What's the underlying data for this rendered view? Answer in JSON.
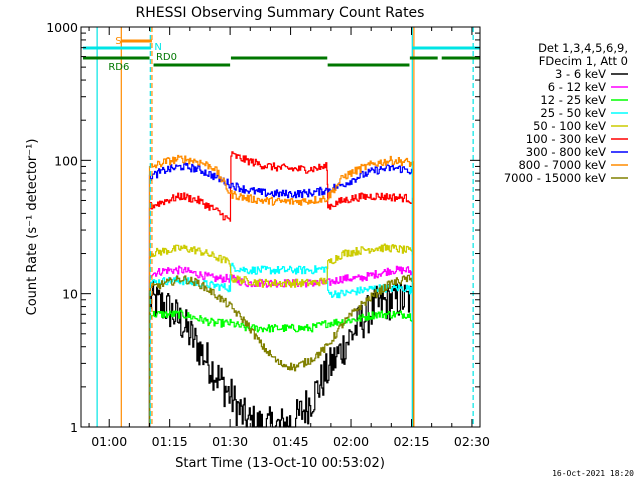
{
  "chart_data": {
    "type": "line",
    "title": "RHESSI Observing Summary Count Rates",
    "xlabel": "Start Time (13-Oct-10 00:53:02)",
    "ylabel": "Count Rate (s⁻¹ detector⁻¹)",
    "yscale": "log",
    "ylim": [
      1,
      1000
    ],
    "xlim_minutes": [
      53.0,
      152.0
    ],
    "x_ticks": [
      {
        "label": "01:00",
        "minute": 60
      },
      {
        "label": "01:15",
        "minute": 75
      },
      {
        "label": "01:30",
        "minute": 90
      },
      {
        "label": "01:45",
        "minute": 105
      },
      {
        "label": "02:00",
        "minute": 120
      },
      {
        "label": "02:15",
        "minute": 135
      },
      {
        "label": "02:30",
        "minute": 150
      }
    ],
    "y_ticks": [
      {
        "label": "1",
        "value": 1
      },
      {
        "label": "10",
        "value": 10
      },
      {
        "label": "100",
        "value": 100
      },
      {
        "label": "1000",
        "value": 1000
      }
    ],
    "legend": {
      "header1": "Det 1,3,4,5,6,9,",
      "header2": "FDecim 1, Att 0",
      "placement": "right, outside plot"
    },
    "series": [
      {
        "name": "3 - 6 keV",
        "color": "#000000",
        "x_minutes": [
          70,
          74,
          78,
          82,
          86,
          90,
          94,
          98,
          102,
          106,
          110,
          114,
          118,
          122,
          126,
          130,
          134,
          135.5
        ],
        "values": [
          9,
          8,
          6,
          4,
          2.6,
          1.7,
          1.1,
          1.0,
          1.0,
          1.1,
          1.6,
          2.6,
          4,
          6,
          8,
          9,
          9,
          9
        ]
      },
      {
        "name": "6 - 12 keV",
        "color": "#ff00ff",
        "x_minutes": [
          70,
          74,
          78,
          82,
          86,
          90,
          94,
          98,
          102,
          106,
          110,
          114,
          118,
          122,
          126,
          130,
          134,
          135.5
        ],
        "values": [
          14,
          15,
          15,
          14,
          13,
          13,
          12,
          12,
          12,
          12,
          12,
          12,
          13,
          13,
          14,
          15,
          15,
          14
        ]
      },
      {
        "name": "12 - 25 keV",
        "color": "#00ff00",
        "x_minutes": [
          70,
          74,
          78,
          82,
          86,
          90,
          94,
          98,
          102,
          106,
          110,
          114,
          118,
          122,
          126,
          130,
          134,
          135.5
        ],
        "values": [
          7,
          7,
          7,
          6.5,
          6,
          6,
          5.5,
          5.5,
          5.5,
          5.5,
          5.5,
          6,
          6.2,
          6.5,
          7,
          7,
          7,
          6.5
        ]
      },
      {
        "name": "25 - 50 keV",
        "color": "#00ffff",
        "x_minutes": [
          70,
          74,
          78,
          82,
          86,
          90,
          90.2,
          94,
          98,
          102,
          106,
          110,
          114,
          114.2,
          118,
          122,
          126,
          130,
          134,
          135.5
        ],
        "values": [
          12,
          12.5,
          12.5,
          12,
          11.5,
          11,
          16,
          15,
          15,
          15,
          15,
          15,
          15.5,
          10,
          10,
          10.5,
          11,
          11,
          11,
          10
        ]
      },
      {
        "name": "50 - 100 keV",
        "color": "#cccc00",
        "x_minutes": [
          70,
          74,
          78,
          82,
          86,
          90,
          90.2,
          94,
          98,
          102,
          106,
          110,
          114,
          114.2,
          118,
          122,
          126,
          130,
          134,
          135.5
        ],
        "values": [
          20,
          21,
          22,
          21,
          19,
          17,
          13,
          12.5,
          12,
          12,
          12,
          12,
          12.5,
          17,
          20,
          21,
          22,
          22,
          21,
          20
        ]
      },
      {
        "name": "100 - 300 keV",
        "color": "#ff0000",
        "x_minutes": [
          70,
          74,
          78,
          82,
          86,
          90,
          90.2,
          94,
          98,
          102,
          106,
          110,
          114,
          114.2,
          118,
          122,
          126,
          130,
          134,
          135.5
        ],
        "values": [
          45,
          50,
          54,
          50,
          43,
          35,
          110,
          100,
          92,
          88,
          86,
          86,
          90,
          45,
          50,
          53,
          54,
          53,
          52,
          48
        ]
      },
      {
        "name": "300 - 800 keV",
        "color": "#0000ff",
        "x_minutes": [
          70,
          74,
          78,
          82,
          86,
          90,
          94,
          98,
          102,
          106,
          110,
          114,
          118,
          122,
          126,
          130,
          134,
          135.5
        ],
        "values": [
          75,
          85,
          90,
          86,
          76,
          66,
          60,
          57,
          56,
          56,
          57,
          60,
          66,
          76,
          84,
          88,
          85,
          80
        ]
      },
      {
        "name": "800 - 7000 keV",
        "color": "#ff8c00",
        "x_minutes": [
          70,
          74,
          78,
          82,
          86,
          90,
          94,
          98,
          102,
          106,
          110,
          114,
          118,
          122,
          126,
          130,
          134,
          135.5
        ],
        "values": [
          88,
          98,
          103,
          98,
          88,
          56,
          52,
          50,
          49,
          49,
          50,
          52,
          75,
          86,
          95,
          100,
          97,
          92
        ]
      },
      {
        "name": "7000 - 15000 keV",
        "color": "#808000",
        "x_minutes": [
          70,
          74,
          78,
          82,
          86,
          90,
          94,
          98,
          102,
          106,
          110,
          114,
          118,
          122,
          126,
          130,
          134,
          135.5
        ],
        "values": [
          11,
          12,
          13,
          12,
          10,
          8,
          6,
          4,
          3,
          2.8,
          3.2,
          4,
          6,
          8,
          10,
          12,
          13,
          12
        ]
      }
    ],
    "vertical_markers": [
      {
        "minute": 57.0,
        "color": "#00e5e5",
        "style": "solid"
      },
      {
        "minute": 63.0,
        "color": "#ff8c00",
        "style": "solid"
      },
      {
        "minute": 70.2,
        "color": "#00e5e5",
        "style": "dashed"
      },
      {
        "minute": 70.6,
        "color": "#ff8c00",
        "style": "dashed"
      },
      {
        "minute": 135.2,
        "color": "#00e5e5",
        "style": "solid"
      },
      {
        "minute": 135.6,
        "color": "#ff8c00",
        "style": "solid"
      },
      {
        "minute": 150.3,
        "color": "#00e5e5",
        "style": "dashed"
      }
    ],
    "flag_bars": [
      {
        "color": "#00e5e5",
        "level": 1,
        "segments": [
          [
            53.5,
            70.4
          ],
          [
            135.2,
            152.0
          ]
        ]
      },
      {
        "color": "#ff8c00",
        "level": 0,
        "segments": [
          [
            63.0,
            70.6
          ]
        ]
      },
      {
        "color": "#007700",
        "level": 2,
        "segments": [
          [
            53.5,
            70.0
          ],
          [
            90.2,
            114.1
          ],
          [
            134.6,
            141.5
          ],
          [
            142.5,
            152.0
          ]
        ]
      },
      {
        "color": "#007700",
        "level": 3,
        "segments": [
          [
            71.0,
            90.0
          ],
          [
            114.2,
            134.5
          ]
        ]
      }
    ],
    "flag_labels": [
      {
        "text": "S",
        "color": "#ff8c00",
        "minute": 61.5,
        "level": 0
      },
      {
        "text": "N",
        "color": "#00e5e5",
        "minute": 71.2,
        "level": 1
      },
      {
        "text": "RD0",
        "color": "#007700",
        "minute": 71.6,
        "level": 2
      },
      {
        "text": "RD6",
        "color": "#007700",
        "minute": 65.0,
        "level": 3
      }
    ]
  },
  "footer": {
    "timestamp": "16-Oct-2021 18:20"
  }
}
